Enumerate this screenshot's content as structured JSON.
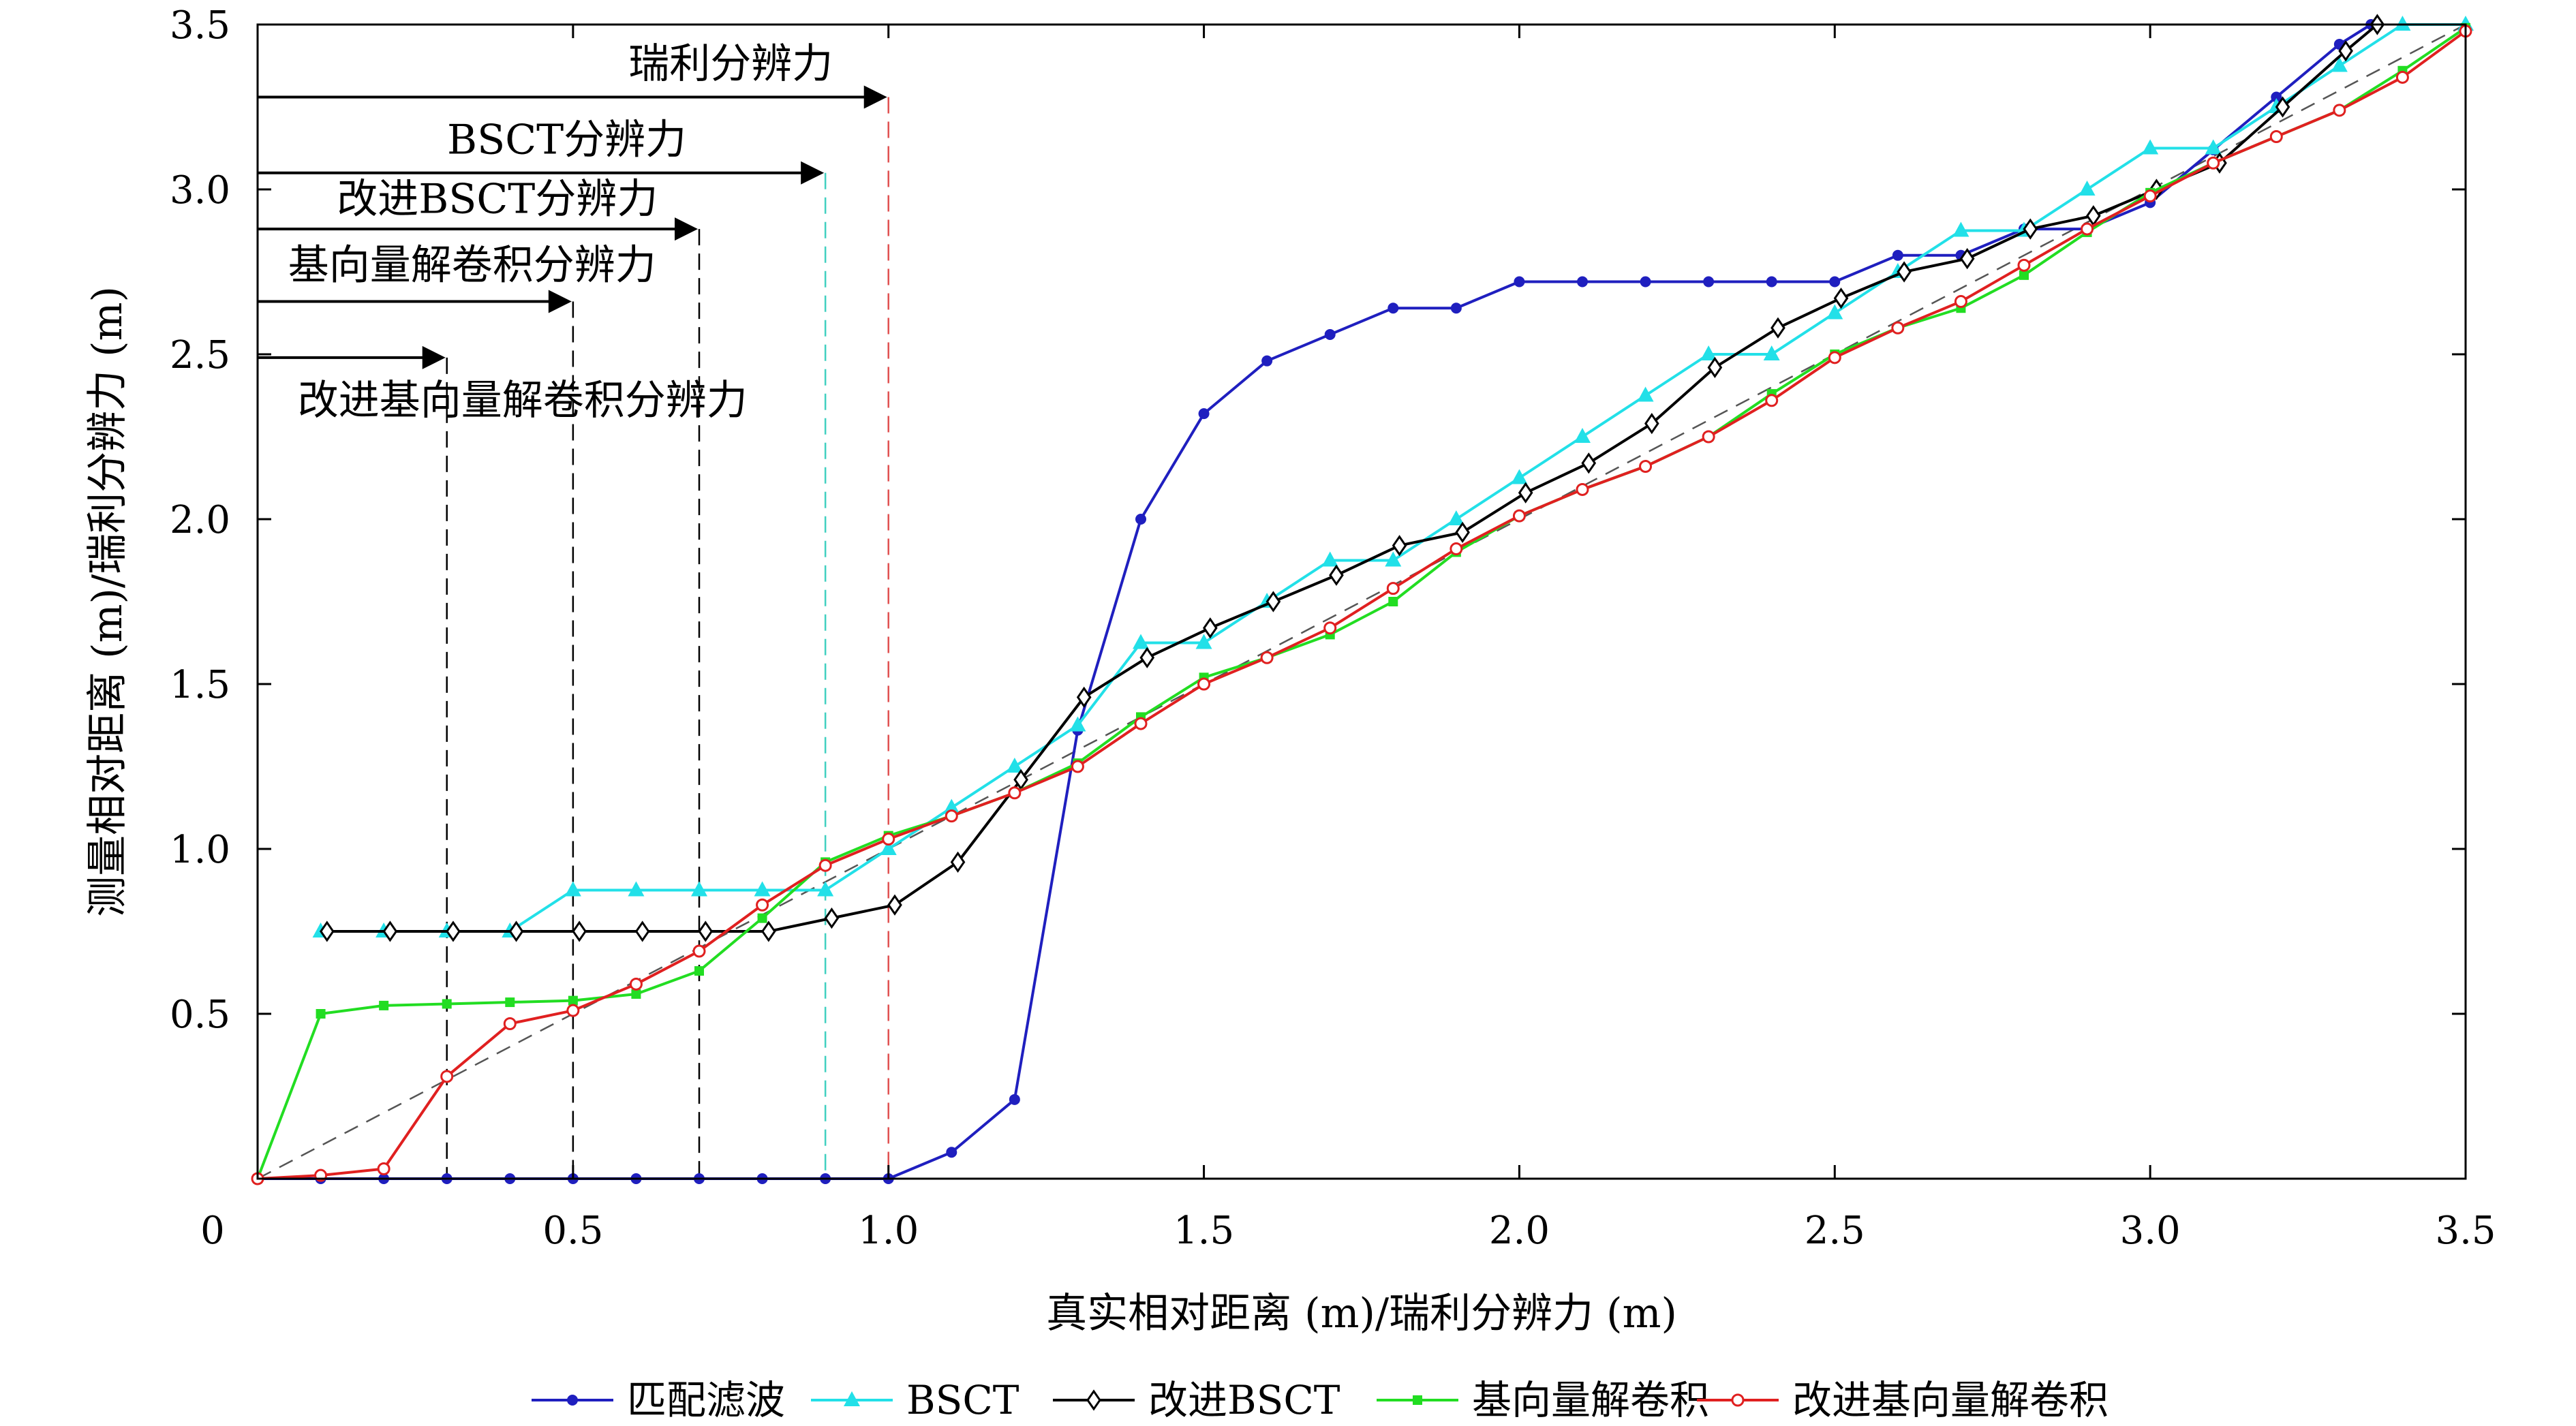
{
  "chart_data": {
    "type": "line",
    "title": "",
    "xlabel": "真实相对距离 (m)/瑞利分辨力 (m)",
    "ylabel": "测量相对距离 (m)/瑞利分辨力 (m)",
    "xlim": [
      0,
      3.5
    ],
    "ylim": [
      0,
      3.5
    ],
    "x_ticks": [
      "0",
      "0.5",
      "1.0",
      "1.5",
      "2.0",
      "2.5",
      "3.0",
      "3.5"
    ],
    "y_ticks": [
      "0.5",
      "1.0",
      "1.5",
      "2.0",
      "2.5",
      "3.0",
      "3.5"
    ],
    "x_tick_values": [
      0,
      0.5,
      1.0,
      1.5,
      2.0,
      2.5,
      3.0,
      3.5
    ],
    "y_tick_values": [
      0.5,
      1.0,
      1.5,
      2.0,
      2.5,
      3.0,
      3.5
    ],
    "grid": false,
    "legend_position": "bottom",
    "reference_line": {
      "x": [
        0,
        3.5
      ],
      "y": [
        0,
        3.5
      ],
      "color": "#555555",
      "style": "dashed"
    },
    "series": [
      {
        "name": "匹配滤波",
        "color": "#1f1fbf",
        "marker": "dot",
        "x": [
          0,
          0.1,
          0.2,
          0.3,
          0.4,
          0.5,
          0.6,
          0.7,
          0.8,
          0.9,
          1.0,
          1.1,
          1.2,
          1.3,
          1.4,
          1.5,
          1.6,
          1.7,
          1.8,
          1.9,
          2.0,
          2.1,
          2.2,
          2.3,
          2.4,
          2.5,
          2.6,
          2.7,
          2.8,
          2.9,
          3.0,
          3.1,
          3.2,
          3.3,
          3.35
        ],
        "y": [
          0,
          0,
          0,
          0,
          0,
          0,
          0,
          0,
          0,
          0,
          0,
          0.08,
          0.24,
          1.36,
          2.0,
          2.32,
          2.48,
          2.56,
          2.64,
          2.64,
          2.72,
          2.72,
          2.72,
          2.72,
          2.72,
          2.72,
          2.8,
          2.8,
          2.88,
          2.88,
          2.96,
          3.12,
          3.28,
          3.44,
          3.5
        ]
      },
      {
        "name": "BSCT",
        "color": "#22e0e8",
        "marker": "triangle",
        "x": [
          0.1,
          0.2,
          0.3,
          0.4,
          0.5,
          0.6,
          0.7,
          0.8,
          0.9,
          1.0,
          1.1,
          1.2,
          1.3,
          1.4,
          1.5,
          1.6,
          1.7,
          1.8,
          1.9,
          2.0,
          2.1,
          2.2,
          2.3,
          2.4,
          2.5,
          2.6,
          2.7,
          2.8,
          2.9,
          3.0,
          3.1,
          3.2,
          3.3,
          3.4,
          3.5
        ],
        "y": [
          0.75,
          0.75,
          0.75,
          0.75,
          0.875,
          0.875,
          0.875,
          0.875,
          0.875,
          1.0,
          1.125,
          1.25,
          1.375,
          1.625,
          1.625,
          1.75,
          1.875,
          1.875,
          2.0,
          2.125,
          2.25,
          2.375,
          2.5,
          2.5,
          2.625,
          2.75,
          2.875,
          2.875,
          3.0,
          3.125,
          3.125,
          3.25,
          3.375,
          3.5,
          3.5
        ]
      },
      {
        "name": "改进BSCT",
        "color": "#000000",
        "marker": "diamond",
        "x": [
          0.11,
          0.21,
          0.31,
          0.41,
          0.51,
          0.61,
          0.71,
          0.81,
          0.91,
          1.01,
          1.11,
          1.21,
          1.31,
          1.41,
          1.51,
          1.61,
          1.71,
          1.81,
          1.91,
          2.01,
          2.11,
          2.21,
          2.31,
          2.41,
          2.51,
          2.61,
          2.71,
          2.81,
          2.91,
          3.01,
          3.11,
          3.21,
          3.31,
          3.36
        ],
        "y": [
          0.75,
          0.75,
          0.75,
          0.75,
          0.75,
          0.75,
          0.75,
          0.75,
          0.79,
          0.83,
          0.96,
          1.21,
          1.46,
          1.58,
          1.67,
          1.75,
          1.83,
          1.92,
          1.96,
          2.08,
          2.17,
          2.29,
          2.46,
          2.58,
          2.67,
          2.75,
          2.79,
          2.88,
          2.92,
          3.0,
          3.08,
          3.25,
          3.42,
          3.5
        ]
      },
      {
        "name": "基向量解卷积",
        "color": "#22dd22",
        "marker": "square",
        "x": [
          0,
          0.1,
          0.2,
          0.3,
          0.4,
          0.5,
          0.6,
          0.7,
          0.8,
          0.9,
          1.0,
          1.1,
          1.2,
          1.3,
          1.4,
          1.5,
          1.6,
          1.7,
          1.8,
          1.9,
          2.0,
          2.1,
          2.2,
          2.3,
          2.4,
          2.5,
          2.6,
          2.7,
          2.8,
          2.9,
          3.0,
          3.1,
          3.2,
          3.3,
          3.4,
          3.5
        ],
        "y": [
          0,
          0.5,
          0.525,
          0.53,
          0.535,
          0.54,
          0.56,
          0.63,
          0.79,
          0.96,
          1.04,
          1.1,
          1.17,
          1.26,
          1.4,
          1.52,
          1.58,
          1.65,
          1.75,
          1.9,
          2.01,
          2.09,
          2.16,
          2.25,
          2.38,
          2.5,
          2.58,
          2.64,
          2.74,
          2.87,
          2.99,
          3.08,
          3.16,
          3.24,
          3.36,
          3.49
        ]
      },
      {
        "name": "改进基向量解卷积",
        "color": "#e02020",
        "marker": "circle",
        "x": [
          0,
          0.1,
          0.2,
          0.3,
          0.4,
          0.5,
          0.6,
          0.7,
          0.8,
          0.9,
          1.0,
          1.1,
          1.2,
          1.3,
          1.4,
          1.5,
          1.6,
          1.7,
          1.8,
          1.9,
          2.0,
          2.1,
          2.2,
          2.3,
          2.4,
          2.5,
          2.6,
          2.7,
          2.8,
          2.9,
          3.0,
          3.1,
          3.2,
          3.3,
          3.4,
          3.5
        ],
        "y": [
          0,
          0.01,
          0.03,
          0.31,
          0.47,
          0.51,
          0.59,
          0.69,
          0.83,
          0.95,
          1.03,
          1.1,
          1.17,
          1.25,
          1.38,
          1.5,
          1.58,
          1.67,
          1.79,
          1.91,
          2.01,
          2.09,
          2.16,
          2.25,
          2.36,
          2.49,
          2.58,
          2.66,
          2.77,
          2.88,
          2.98,
          3.08,
          3.16,
          3.24,
          3.34,
          3.48
        ]
      }
    ],
    "resolution_markers": [
      {
        "label": "瑞利分辨力",
        "x": 1.0,
        "y": 3.28,
        "color": "#e05050",
        "label_x": 0.75,
        "label_y": 3.38
      },
      {
        "label": "BSCT分辨力",
        "x": 0.9,
        "y": 3.05,
        "color": "#40d0c0",
        "label_x": 0.49,
        "label_y": 3.15
      },
      {
        "label": "改进BSCT分辨力",
        "x": 0.7,
        "y": 2.88,
        "color": "#000000",
        "label_x": 0.38,
        "label_y": 2.97
      },
      {
        "label": "基向量解卷积分辨力",
        "x": 0.5,
        "y": 2.66,
        "color": "#000000",
        "label_x": 0.34,
        "label_y": 2.77
      },
      {
        "label": "改进基向量解卷积分辨力",
        "x": 0.3,
        "y": 2.49,
        "color": "#000000",
        "label_x": 0.42,
        "label_y": 2.36
      }
    ]
  }
}
